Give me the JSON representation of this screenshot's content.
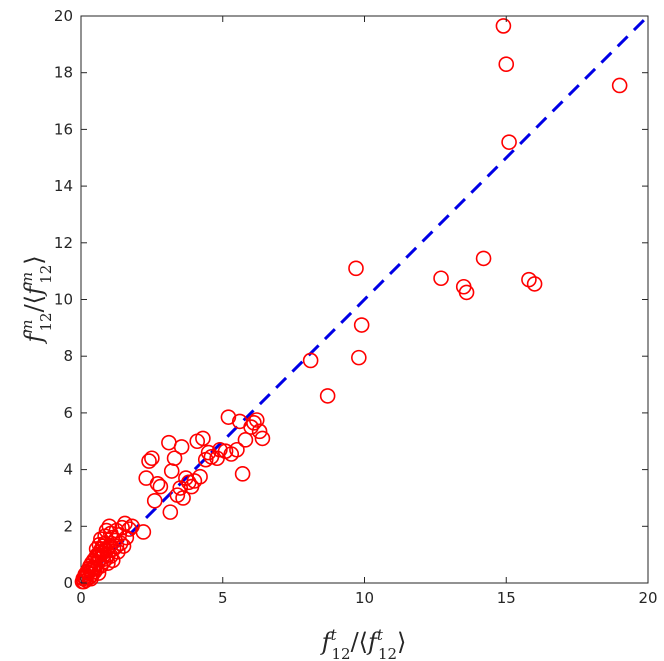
{
  "chart_data": {
    "type": "scatter",
    "title": "",
    "xlabel": "f_12^t / ⟨f_12^t⟩",
    "ylabel": "f_12^m / ⟨f_12^m⟩",
    "xlim": [
      0,
      20
    ],
    "ylim": [
      0,
      20
    ],
    "xticks": [
      0,
      5,
      10,
      15,
      20
    ],
    "yticks": [
      0,
      2,
      4,
      6,
      8,
      10,
      12,
      14,
      16,
      18,
      20
    ],
    "grid": false,
    "colors": {
      "points": "#ff0000",
      "reference_line": "#0000e6",
      "axes": "#262626"
    },
    "reference_line": {
      "name": "y = x",
      "style": "dashed",
      "x": [
        0,
        20
      ],
      "y": [
        0,
        20
      ]
    },
    "series": [
      {
        "name": "measurements",
        "marker": "open-circle",
        "points": [
          [
            0.05,
            0.05
          ],
          [
            0.08,
            0.15
          ],
          [
            0.1,
            0.05
          ],
          [
            0.12,
            0.2
          ],
          [
            0.15,
            0.3
          ],
          [
            0.18,
            0.1
          ],
          [
            0.2,
            0.25
          ],
          [
            0.22,
            0.4
          ],
          [
            0.25,
            0.35
          ],
          [
            0.28,
            0.5
          ],
          [
            0.3,
            0.2
          ],
          [
            0.32,
            0.6
          ],
          [
            0.35,
            0.45
          ],
          [
            0.38,
            0.7
          ],
          [
            0.4,
            0.3
          ],
          [
            0.42,
            0.55
          ],
          [
            0.45,
            0.8
          ],
          [
            0.48,
            0.4
          ],
          [
            0.5,
            0.65
          ],
          [
            0.52,
            0.9
          ],
          [
            0.55,
            0.5
          ],
          [
            0.58,
            1.0
          ],
          [
            0.6,
            0.7
          ],
          [
            0.62,
            0.35
          ],
          [
            0.65,
            0.85
          ],
          [
            0.68,
            1.1
          ],
          [
            0.7,
            0.6
          ],
          [
            0.72,
            1.2
          ],
          [
            0.75,
            0.9
          ],
          [
            0.78,
            1.3
          ],
          [
            0.8,
            0.75
          ],
          [
            0.82,
            1.0
          ],
          [
            0.85,
            1.4
          ],
          [
            0.88,
            0.85
          ],
          [
            0.9,
            1.15
          ],
          [
            0.95,
            1.0
          ],
          [
            1.0,
            1.3
          ],
          [
            1.05,
            0.95
          ],
          [
            1.1,
            1.6
          ],
          [
            1.12,
            0.8
          ],
          [
            1.15,
            1.2
          ],
          [
            1.2,
            1.5
          ],
          [
            1.25,
            1.85
          ],
          [
            1.3,
            1.1
          ],
          [
            1.35,
            1.7
          ],
          [
            1.4,
            1.4
          ],
          [
            1.45,
            1.95
          ],
          [
            1.5,
            1.3
          ],
          [
            1.55,
            2.1
          ],
          [
            1.6,
            1.6
          ],
          [
            1.7,
            1.9
          ],
          [
            1.8,
            2.0
          ],
          [
            1.0,
            2.0
          ],
          [
            0.9,
            1.85
          ],
          [
            0.7,
            1.55
          ],
          [
            0.75,
            1.05
          ],
          [
            0.6,
            0.95
          ],
          [
            0.55,
            1.2
          ],
          [
            0.85,
            1.65
          ],
          [
            1.05,
            1.75
          ],
          [
            0.95,
            0.7
          ],
          [
            1.25,
            1.3
          ],
          [
            0.45,
            0.5
          ],
          [
            0.35,
            0.15
          ],
          [
            0.65,
            1.35
          ],
          [
            2.2,
            1.8
          ],
          [
            2.3,
            3.7
          ],
          [
            2.4,
            4.3
          ],
          [
            2.5,
            4.4
          ],
          [
            2.6,
            2.9
          ],
          [
            2.7,
            3.5
          ],
          [
            2.8,
            3.4
          ],
          [
            3.1,
            4.95
          ],
          [
            3.15,
            2.5
          ],
          [
            3.2,
            3.95
          ],
          [
            3.3,
            4.4
          ],
          [
            3.4,
            3.1
          ],
          [
            3.5,
            3.35
          ],
          [
            3.55,
            4.8
          ],
          [
            3.6,
            3.0
          ],
          [
            3.7,
            3.7
          ],
          [
            3.8,
            3.55
          ],
          [
            3.9,
            3.4
          ],
          [
            4.0,
            3.6
          ],
          [
            4.1,
            5.0
          ],
          [
            4.2,
            3.75
          ],
          [
            4.3,
            5.1
          ],
          [
            4.4,
            4.35
          ],
          [
            4.5,
            4.6
          ],
          [
            4.6,
            4.45
          ],
          [
            4.8,
            4.4
          ],
          [
            4.9,
            4.7
          ],
          [
            5.1,
            4.65
          ],
          [
            5.2,
            5.85
          ],
          [
            5.3,
            4.55
          ],
          [
            5.5,
            4.7
          ],
          [
            5.6,
            5.7
          ],
          [
            5.7,
            3.85
          ],
          [
            5.8,
            5.05
          ],
          [
            6.0,
            5.5
          ],
          [
            6.1,
            5.65
          ],
          [
            6.2,
            5.75
          ],
          [
            6.3,
            5.35
          ],
          [
            6.4,
            5.1
          ],
          [
            8.1,
            7.85
          ],
          [
            8.7,
            6.6
          ],
          [
            9.7,
            11.1
          ],
          [
            9.8,
            7.95
          ],
          [
            9.9,
            9.1
          ],
          [
            12.7,
            10.75
          ],
          [
            13.5,
            10.45
          ],
          [
            13.6,
            10.25
          ],
          [
            14.2,
            11.45
          ],
          [
            14.9,
            19.65
          ],
          [
            15.0,
            18.3
          ],
          [
            15.1,
            15.55
          ],
          [
            15.8,
            10.7
          ],
          [
            16.0,
            10.55
          ],
          [
            19.0,
            17.55
          ]
        ]
      }
    ]
  }
}
